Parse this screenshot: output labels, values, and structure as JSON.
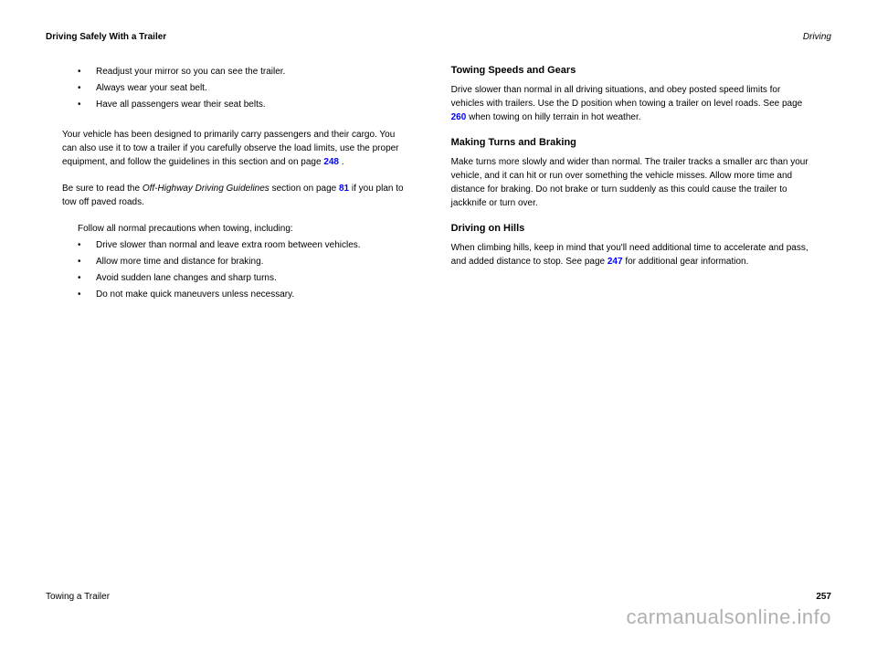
{
  "header": {
    "left": "Driving Safely With a Trailer",
    "right": "Driving"
  },
  "bullets1": [
    "Readjust your mirror so you can see the trailer.",
    "Always wear your seat belt.",
    "Have all passengers wear their seat belts."
  ],
  "bullets2": [
    "Follow all normal precautions when towing, including:",
    "Drive slower than normal and leave extra room between vehicles.",
    "Allow more time and distance for braking.",
    "Avoid sudden lane changes and sharp turns.",
    "Do not make quick maneuvers unless necessary."
  ],
  "para1_prefix": "Your vehicle has been designed to primarily carry passengers and their cargo. You can also use it to tow a trailer if you carefully observe the load limits, use the proper equipment, and follow the guidelines in this section and on page ",
  "para1_ref": "248",
  "para1_suffix": ".",
  "para2_prefix": "Be sure to read the ",
  "para2_em": "Off-Highway Driving Guidelines",
  "para2_mid": " section on page ",
  "para2_ref": "81",
  "para2_suffix": " if you plan to tow off paved roads.",
  "section_a": "Towing Speeds and Gears",
  "para_a1_prefix": "Drive slower than normal in all driving situations, and obey posted speed limits for vehicles with trailers. Use the D position when towing a trailer on level roads. See page ",
  "para_a1_ref": "260",
  "para_a1_suffix": " when towing on hilly terrain in hot weather.",
  "section_b": "Making Turns and Braking",
  "para_b1": "Make turns more slowly and wider than normal. The trailer tracks a smaller arc than your vehicle, and it can hit or run over something the vehicle misses. Allow more time and distance for braking. Do not brake or turn suddenly as this could cause the trailer to jackknife or turn over.",
  "section_c": "Driving on Hills",
  "para_c1_prefix": "When climbing hills, keep in mind that you'll need additional time to accelerate and pass, and added distance to stop. See page ",
  "para_c1_ref": "247",
  "para_c1_suffix": " for additional gear information.",
  "footer": {
    "pagenum": "257",
    "title": "Towing a Trailer"
  },
  "watermark": "carmanualsonline.info",
  "colors": {
    "link": "#0000ff",
    "text": "#000000",
    "watermark": "#b0b0b0",
    "bg": "#ffffff"
  }
}
